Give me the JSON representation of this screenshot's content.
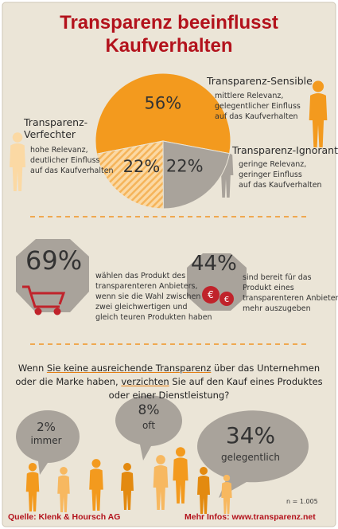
{
  "chart_data": {
    "type": "pie",
    "title": [
      "Transparenz beeinflusst",
      "Kaufverhalten"
    ],
    "categories": [
      "Transparenz-Sensible",
      "Transparenz-Ignoranten",
      "Transparenz-Verfechter"
    ],
    "values": [
      56,
      22,
      22
    ],
    "value_labels": [
      "56%",
      "22%",
      "22%"
    ],
    "colors": [
      "#f39a1e",
      "#a9a39b",
      "#fbd9a4"
    ],
    "descriptions": [
      [
        "mittlere Relevanz,",
        "gelegentlicher Einfluss",
        "auf das Kaufverhalten"
      ],
      [
        "geringe Relevanz,",
        "geringer Einfluss",
        "auf das Kaufverhalten"
      ],
      [
        "hohe Relevanz,",
        "deutlicher Einfluss",
        "auf das Kaufverhalten"
      ]
    ]
  },
  "stats": [
    {
      "label": "69%",
      "lines": [
        "wählen das Produkt des",
        "transparenteren Anbieters,",
        "wenn sie die Wahl zwischen",
        "zwei gleichwertigen und",
        "gleich teuren Produkten haben"
      ]
    },
    {
      "label": "44%",
      "lines": [
        "sind bereit für das",
        "Produkt eines",
        "transparenteren Anbieters",
        "mehr auszugeben"
      ]
    }
  ],
  "question": [
    [
      {
        "text": "Wenn "
      },
      {
        "text": "Sie keine ausreichende Transparenz",
        "underline": true
      },
      {
        "text": " über das Unternehmen"
      }
    ],
    [
      {
        "text": "oder die Marke haben, "
      },
      {
        "text": "verzichten",
        "underline": true
      },
      {
        "text": " Sie auf den Kauf eines Produktes"
      }
    ],
    [
      {
        "text": "oder einer Dienstleistung?"
      }
    ]
  ],
  "answers": [
    {
      "label": "2%",
      "text": "immer"
    },
    {
      "label": "8%",
      "text": "oft"
    },
    {
      "label": "34%",
      "text": "gelegentlich"
    }
  ],
  "sample": "n = 1.005",
  "footer": {
    "source": "Quelle: Klenk & Hoursch AG",
    "more": "Mehr Infos: www.transparenz.net"
  }
}
